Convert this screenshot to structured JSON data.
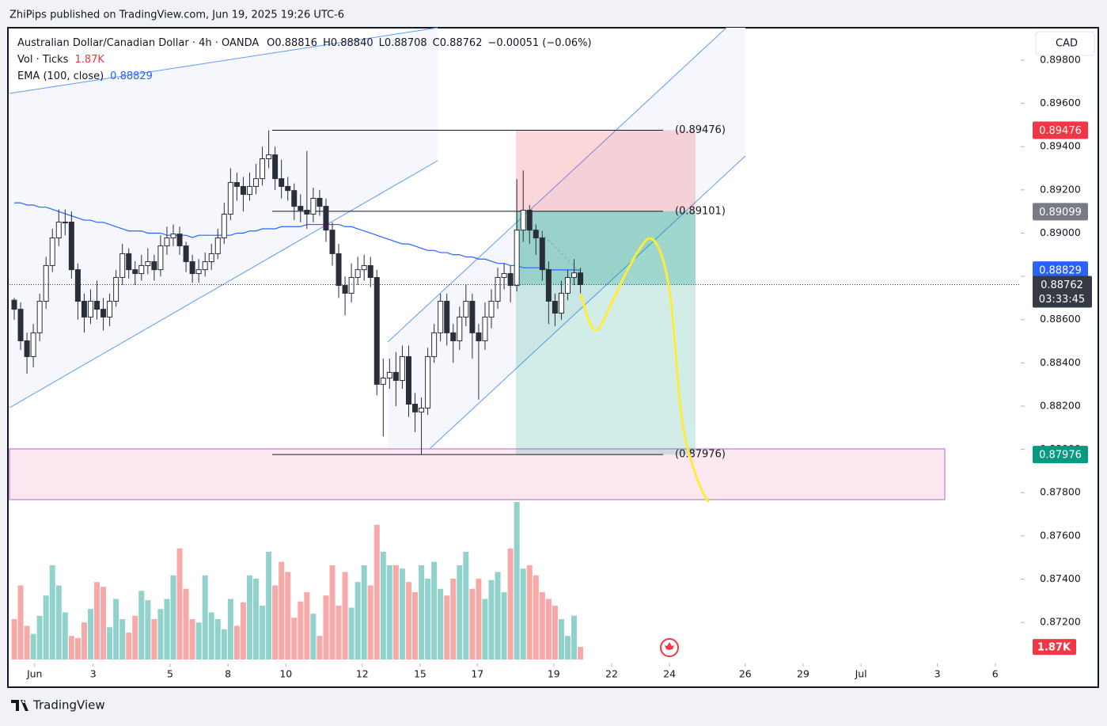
{
  "header": {
    "publisher": "ZhiPips published on TradingView.com, Jun 19, 2025 19:26 UTC-6",
    "brand": "TradingView"
  },
  "legend": {
    "symbol": "Australian Dollar/Canadian Dollar · 4h · OANDA",
    "ohlc": [
      {
        "key": "O",
        "value": "0.88816"
      },
      {
        "key": "H",
        "value": "0.88840"
      },
      {
        "key": "L",
        "value": "0.88708"
      },
      {
        "key": "C",
        "value": "0.88762"
      }
    ],
    "change": "−0.00051 (−0.06%)",
    "volume": {
      "name": "Vol · Ticks",
      "value": "1.87K"
    },
    "ema": {
      "name": "EMA (100, close)",
      "value": "0.88829"
    }
  },
  "currency": "CAD",
  "chart_data": {
    "type": "candlestick",
    "open": [
      0.8869,
      0.88648,
      0.88502,
      0.88429,
      0.88539,
      0.88685,
      0.8885,
      0.88978,
      0.89051,
      0.89051,
      0.88831,
      0.88685,
      0.88612,
      0.88685,
      0.88648,
      0.88612,
      0.88685,
      0.88795,
      0.88905,
      0.88831,
      0.88813,
      0.8885,
      0.88868,
      0.88831,
      0.88941,
      0.88978,
      0.88996,
      0.88941,
      0.88868,
      0.88813,
      0.88831,
      0.88868,
      0.88905,
      0.88978,
      0.89088,
      0.89234,
      0.89216,
      0.89179,
      0.89216,
      0.89252,
      0.89344,
      0.89362,
      0.89252,
      0.89216,
      0.89197,
      0.89124,
      0.89106,
      0.89088,
      0.89161,
      0.89124,
      0.89014,
      0.88905,
      0.88758,
      0.88722,
      0.88795,
      0.88831,
      0.8885,
      0.88795,
      0.88301,
      0.8833,
      0.88356,
      0.88319,
      0.88429,
      0.88209,
      0.88173,
      0.88191,
      0.88429,
      0.88539,
      0.88685,
      0.88539,
      0.88502,
      0.88612,
      0.88685,
      0.88539,
      0.88502,
      0.88612,
      0.88685,
      0.88795,
      0.88813,
      0.88758,
      0.89014,
      0.89106,
      0.89014,
      0.88978,
      0.88831,
      0.88685,
      0.8863,
      0.88722,
      0.88795,
      0.88816
    ],
    "high": [
      0.887,
      0.8868,
      0.8854,
      0.8858,
      0.8872,
      0.8889,
      0.8902,
      0.8911,
      0.8911,
      0.891,
      0.8886,
      0.8872,
      0.8874,
      0.8878,
      0.887,
      0.8872,
      0.8883,
      0.8895,
      0.8893,
      0.8887,
      0.889,
      0.8893,
      0.889,
      0.8899,
      0.8903,
      0.8904,
      0.8903,
      0.8896,
      0.889,
      0.8888,
      0.8891,
      0.8895,
      0.8902,
      0.8914,
      0.893,
      0.8928,
      0.8926,
      0.8928,
      0.8932,
      0.894,
      0.89476,
      0.894,
      0.8934,
      0.8926,
      0.8923,
      0.8918,
      0.8938,
      0.8921,
      0.892,
      0.8916,
      0.8905,
      0.8895,
      0.888,
      0.8886,
      0.8889,
      0.889,
      0.8889,
      0.8883,
      0.8842,
      0.8842,
      0.8845,
      0.8848,
      0.8848,
      0.8826,
      0.8824,
      0.8847,
      0.8858,
      0.8872,
      0.8872,
      0.8858,
      0.8866,
      0.8876,
      0.8872,
      0.8858,
      0.8868,
      0.8874,
      0.8884,
      0.8886,
      0.8885,
      0.8925,
      0.8929,
      0.8913,
      0.8904,
      0.8901,
      0.8887,
      0.8872,
      0.8878,
      0.8883,
      0.8888,
      0.8884
    ],
    "low": [
      0.886,
      0.8846,
      0.8835,
      0.8838,
      0.885,
      0.8865,
      0.8882,
      0.8894,
      0.8899,
      0.8879,
      0.886,
      0.8854,
      0.8858,
      0.886,
      0.8855,
      0.8857,
      0.8866,
      0.8876,
      0.8879,
      0.8876,
      0.8878,
      0.8881,
      0.8878,
      0.888,
      0.889,
      0.8894,
      0.889,
      0.8882,
      0.8877,
      0.8877,
      0.888,
      0.8883,
      0.8888,
      0.8895,
      0.8906,
      0.8915,
      0.891,
      0.8915,
      0.8918,
      0.8922,
      0.893,
      0.892,
      0.8916,
      0.8915,
      0.8906,
      0.8905,
      0.8902,
      0.8905,
      0.8908,
      0.8896,
      0.8885,
      0.887,
      0.8862,
      0.8868,
      0.8876,
      0.8878,
      0.8875,
      0.8825,
      0.8806,
      0.8828,
      0.882,
      0.8828,
      0.8815,
      0.8808,
      0.87976,
      0.8816,
      0.884,
      0.885,
      0.8848,
      0.884,
      0.8846,
      0.8857,
      0.8842,
      0.8823,
      0.8846,
      0.8856,
      0.8865,
      0.8874,
      0.8868,
      0.8873,
      0.8896,
      0.8895,
      0.889,
      0.8878,
      0.8858,
      0.8857,
      0.886,
      0.8869,
      0.8876,
      0.88708
    ],
    "close": [
      0.88648,
      0.88502,
      0.88429,
      0.88539,
      0.88685,
      0.8885,
      0.88978,
      0.89051,
      0.89051,
      0.88831,
      0.88685,
      0.88612,
      0.88685,
      0.88648,
      0.88612,
      0.88685,
      0.88795,
      0.88905,
      0.88831,
      0.88813,
      0.8885,
      0.88868,
      0.88831,
      0.88941,
      0.88978,
      0.88996,
      0.88941,
      0.88868,
      0.88813,
      0.88831,
      0.88868,
      0.88905,
      0.88978,
      0.89088,
      0.89234,
      0.89216,
      0.89179,
      0.89216,
      0.89252,
      0.89344,
      0.89362,
      0.89252,
      0.89216,
      0.89197,
      0.89124,
      0.89106,
      0.89088,
      0.89161,
      0.89124,
      0.89014,
      0.88905,
      0.88758,
      0.88722,
      0.88795,
      0.88831,
      0.8885,
      0.88795,
      0.88301,
      0.8833,
      0.88356,
      0.88319,
      0.88429,
      0.88209,
      0.88173,
      0.88191,
      0.88429,
      0.88539,
      0.88685,
      0.88539,
      0.88502,
      0.88612,
      0.88685,
      0.88539,
      0.88502,
      0.88612,
      0.88685,
      0.88795,
      0.88813,
      0.88758,
      0.89014,
      0.89106,
      0.89014,
      0.88978,
      0.88831,
      0.88685,
      0.8863,
      0.88722,
      0.88795,
      0.88816,
      0.88762
    ],
    "volume": [
      6000,
      11000,
      5000,
      3800,
      6500,
      9500,
      14000,
      11000,
      7000,
      3500,
      3200,
      5500,
      7500,
      11500,
      10800,
      4800,
      9000,
      6000,
      4000,
      6500,
      10200,
      8800,
      6000,
      7500,
      9000,
      12500,
      16500,
      10500,
      6000,
      5500,
      12500,
      7000,
      6000,
      4500,
      9000,
      5000,
      8500,
      12500,
      12000,
      8000,
      16000,
      11000,
      14500,
      13000,
      6200,
      8600,
      10000,
      6800,
      3500,
      9500,
      14000,
      8000,
      13000,
      7700,
      11500,
      14000,
      11000,
      20000,
      16000,
      14000,
      14000,
      13500,
      11500,
      10000,
      14000,
      12000,
      14500,
      10500,
      9500,
      12000,
      14000,
      16000,
      10500,
      12000,
      9000,
      11800,
      13000,
      10000,
      16500,
      23400,
      13500,
      14000,
      12500,
      10000,
      9000,
      8000,
      6000,
      3500,
      6500,
      1870
    ],
    "ema": [
      0.8914,
      0.8914,
      0.8913,
      0.8913,
      0.8912,
      0.8912,
      0.8911,
      0.891,
      0.8909,
      0.8908,
      0.8907,
      0.8906,
      0.8906,
      0.8905,
      0.8905,
      0.8904,
      0.8903,
      0.8902,
      0.8901,
      0.8901,
      0.8901,
      0.89,
      0.89,
      0.89,
      0.8899,
      0.8899,
      0.8899,
      0.8899,
      0.8898,
      0.8899,
      0.8899,
      0.8899,
      0.8899,
      0.8899,
      0.8899,
      0.89,
      0.89,
      0.8901,
      0.8901,
      0.8902,
      0.8902,
      0.8902,
      0.8903,
      0.8903,
      0.8903,
      0.8903,
      0.8904,
      0.8904,
      0.8904,
      0.8904,
      0.8904,
      0.8904,
      0.8903,
      0.8903,
      0.8902,
      0.8901,
      0.89,
      0.8899,
      0.8898,
      0.8897,
      0.8896,
      0.8895,
      0.8895,
      0.8894,
      0.8893,
      0.8892,
      0.8892,
      0.8891,
      0.8891,
      0.889,
      0.889,
      0.8889,
      0.8889,
      0.8888,
      0.8888,
      0.8887,
      0.8886,
      0.8886,
      0.8885,
      0.8885,
      0.8884,
      0.8884,
      0.8884,
      0.8884,
      0.8883,
      0.8883,
      0.8883,
      0.8883,
      0.8883,
      0.88829
    ],
    "up_color": "#ffffff",
    "down_color": "#2a2e39",
    "volume_up_color": "#92d2cc",
    "volume_down_color": "#f7a9a7",
    "ema_color": "#2962ff",
    "ylim": [
      0.8701,
      0.8995
    ],
    "yticks": [
      {
        "value": 0.872,
        "label": "0.87200"
      },
      {
        "value": 0.874,
        "label": "0.87400"
      },
      {
        "value": 0.876,
        "label": "0.87600"
      },
      {
        "value": 0.878,
        "label": "0.87800"
      },
      {
        "value": 0.88,
        "label": "0.88000"
      },
      {
        "value": 0.882,
        "label": "0.88200"
      },
      {
        "value": 0.884,
        "label": "0.88400"
      },
      {
        "value": 0.886,
        "label": "0.88600"
      },
      {
        "value": 0.888,
        "label": "0.88800"
      },
      {
        "value": 0.89,
        "label": "0.89000"
      },
      {
        "value": 0.892,
        "label": "0.89200"
      },
      {
        "value": 0.894,
        "label": "0.89400"
      },
      {
        "value": 0.896,
        "label": "0.89600"
      },
      {
        "value": 0.898,
        "label": "0.89800"
      }
    ],
    "xticks": [
      {
        "value": 3.2,
        "label": "Jun"
      },
      {
        "value": 12.4,
        "label": "3"
      },
      {
        "value": 24.5,
        "label": "5"
      },
      {
        "value": 33.6,
        "label": "8"
      },
      {
        "value": 42.7,
        "label": "10"
      },
      {
        "value": 54.7,
        "label": "12"
      },
      {
        "value": 63.8,
        "label": "15"
      },
      {
        "value": 72.8,
        "label": "17"
      },
      {
        "value": 84.8,
        "label": "19"
      },
      {
        "value": 93.9,
        "label": "22"
      },
      {
        "value": 103,
        "label": "24"
      },
      {
        "value": 114.9,
        "label": "26"
      },
      {
        "value": 124,
        "label": "29"
      },
      {
        "value": 133.1,
        "label": "Jul"
      },
      {
        "value": 145.1,
        "label": "3"
      },
      {
        "value": 154.2,
        "label": "6"
      }
    ],
    "price_labels": [
      {
        "value": 0.89476,
        "color": "#f23645"
      },
      {
        "value": 0.89099,
        "color": "#787b86"
      },
      {
        "value": 0.88829,
        "color": "#2962ff"
      },
      {
        "value": 0.87976,
        "color": "#089981"
      }
    ],
    "last_price": {
      "value": 0.88762,
      "countdown": "03:33:45",
      "color": "#363a45"
    },
    "volume_label": {
      "value": 1870,
      "label": "1.87K",
      "color": "#f23645"
    },
    "position": {
      "stop": {
        "value": 0.89476,
        "label": "(0.89476)"
      },
      "entry": {
        "value": 0.89101,
        "label": "(0.89101)"
      },
      "target": {
        "value": 0.87976,
        "label": "(0.87976)"
      }
    }
  }
}
